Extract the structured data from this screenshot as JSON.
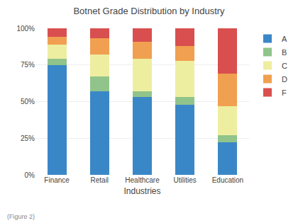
{
  "chart_data": {
    "type": "bar",
    "stacked": true,
    "title": "Botnet Grade Distribution by Industry",
    "xlabel": "Industries",
    "annotations": [
      "(Figure 2)"
    ],
    "categories": [
      "Finance",
      "Retail",
      "Healthcare",
      "Utilities",
      "Education"
    ],
    "series": [
      {
        "name": "A",
        "color": "#3a87c8",
        "values": [
          75,
          57,
          53,
          48,
          22
        ]
      },
      {
        "name": "B",
        "color": "#90c48a",
        "values": [
          4,
          10,
          4,
          5,
          5
        ]
      },
      {
        "name": "C",
        "color": "#eeeea0",
        "values": [
          10,
          15,
          22,
          25,
          20
        ]
      },
      {
        "name": "D",
        "color": "#f0a050",
        "values": [
          5,
          11,
          12,
          10,
          22
        ]
      },
      {
        "name": "F",
        "color": "#d94f4f",
        "values": [
          6,
          7,
          9,
          12,
          31
        ]
      }
    ],
    "ylim": [
      0,
      100
    ],
    "yticks": [
      {
        "value": 0,
        "label": "0%"
      },
      {
        "value": 25,
        "label": "25%"
      },
      {
        "value": 50,
        "label": "50%"
      },
      {
        "value": 75,
        "label": "75%"
      },
      {
        "value": 100,
        "label": "100%"
      }
    ],
    "grid": true,
    "legend": "right"
  }
}
